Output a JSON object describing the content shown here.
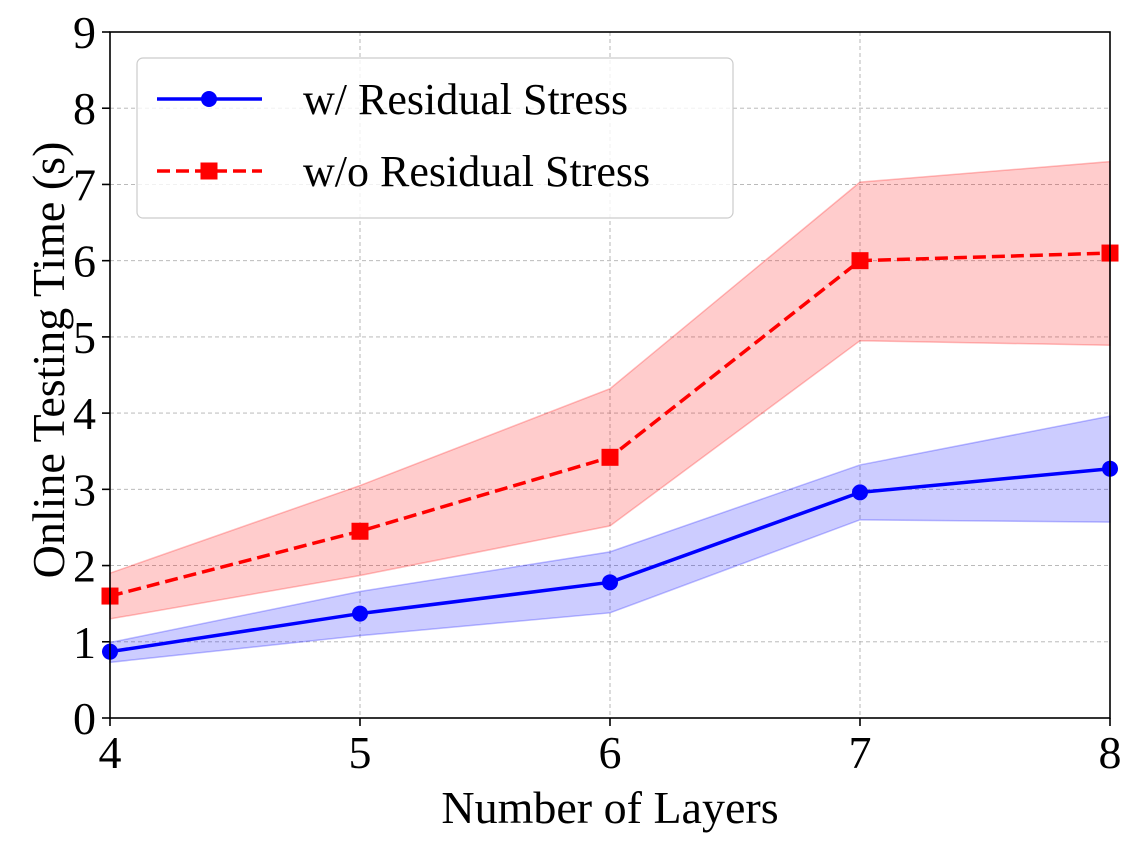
{
  "chart_data": {
    "type": "line",
    "title": "",
    "xlabel": "Number of Layers",
    "ylabel": "Online Testing Time (s)",
    "x": [
      4,
      5,
      6,
      7,
      8
    ],
    "xlim": [
      4,
      8
    ],
    "ylim": [
      0,
      9
    ],
    "xticks": [
      "4",
      "5",
      "6",
      "7",
      "8"
    ],
    "yticks": [
      "0",
      "1",
      "2",
      "3",
      "4",
      "5",
      "6",
      "7",
      "8",
      "9"
    ],
    "grid": true,
    "legend_position": "top-left",
    "series": [
      {
        "name": "w/ Residual Stress",
        "values": [
          0.87,
          1.37,
          1.78,
          2.96,
          3.27
        ],
        "lower": [
          0.73,
          1.08,
          1.38,
          2.6,
          2.57
        ],
        "upper": [
          0.99,
          1.66,
          2.18,
          3.32,
          3.96
        ],
        "color": "#0000ff",
        "fill_color": "#0000ff",
        "line_style": "solid",
        "marker": "circle"
      },
      {
        "name": "w/o Residual Stress",
        "values": [
          1.6,
          2.45,
          3.42,
          6.0,
          6.1
        ],
        "lower": [
          1.3,
          1.87,
          2.52,
          4.95,
          4.89
        ],
        "upper": [
          1.9,
          3.05,
          4.32,
          7.03,
          7.3
        ],
        "color": "#ff0000",
        "fill_color": "#ff0000",
        "line_style": "dashed",
        "marker": "square"
      }
    ]
  }
}
